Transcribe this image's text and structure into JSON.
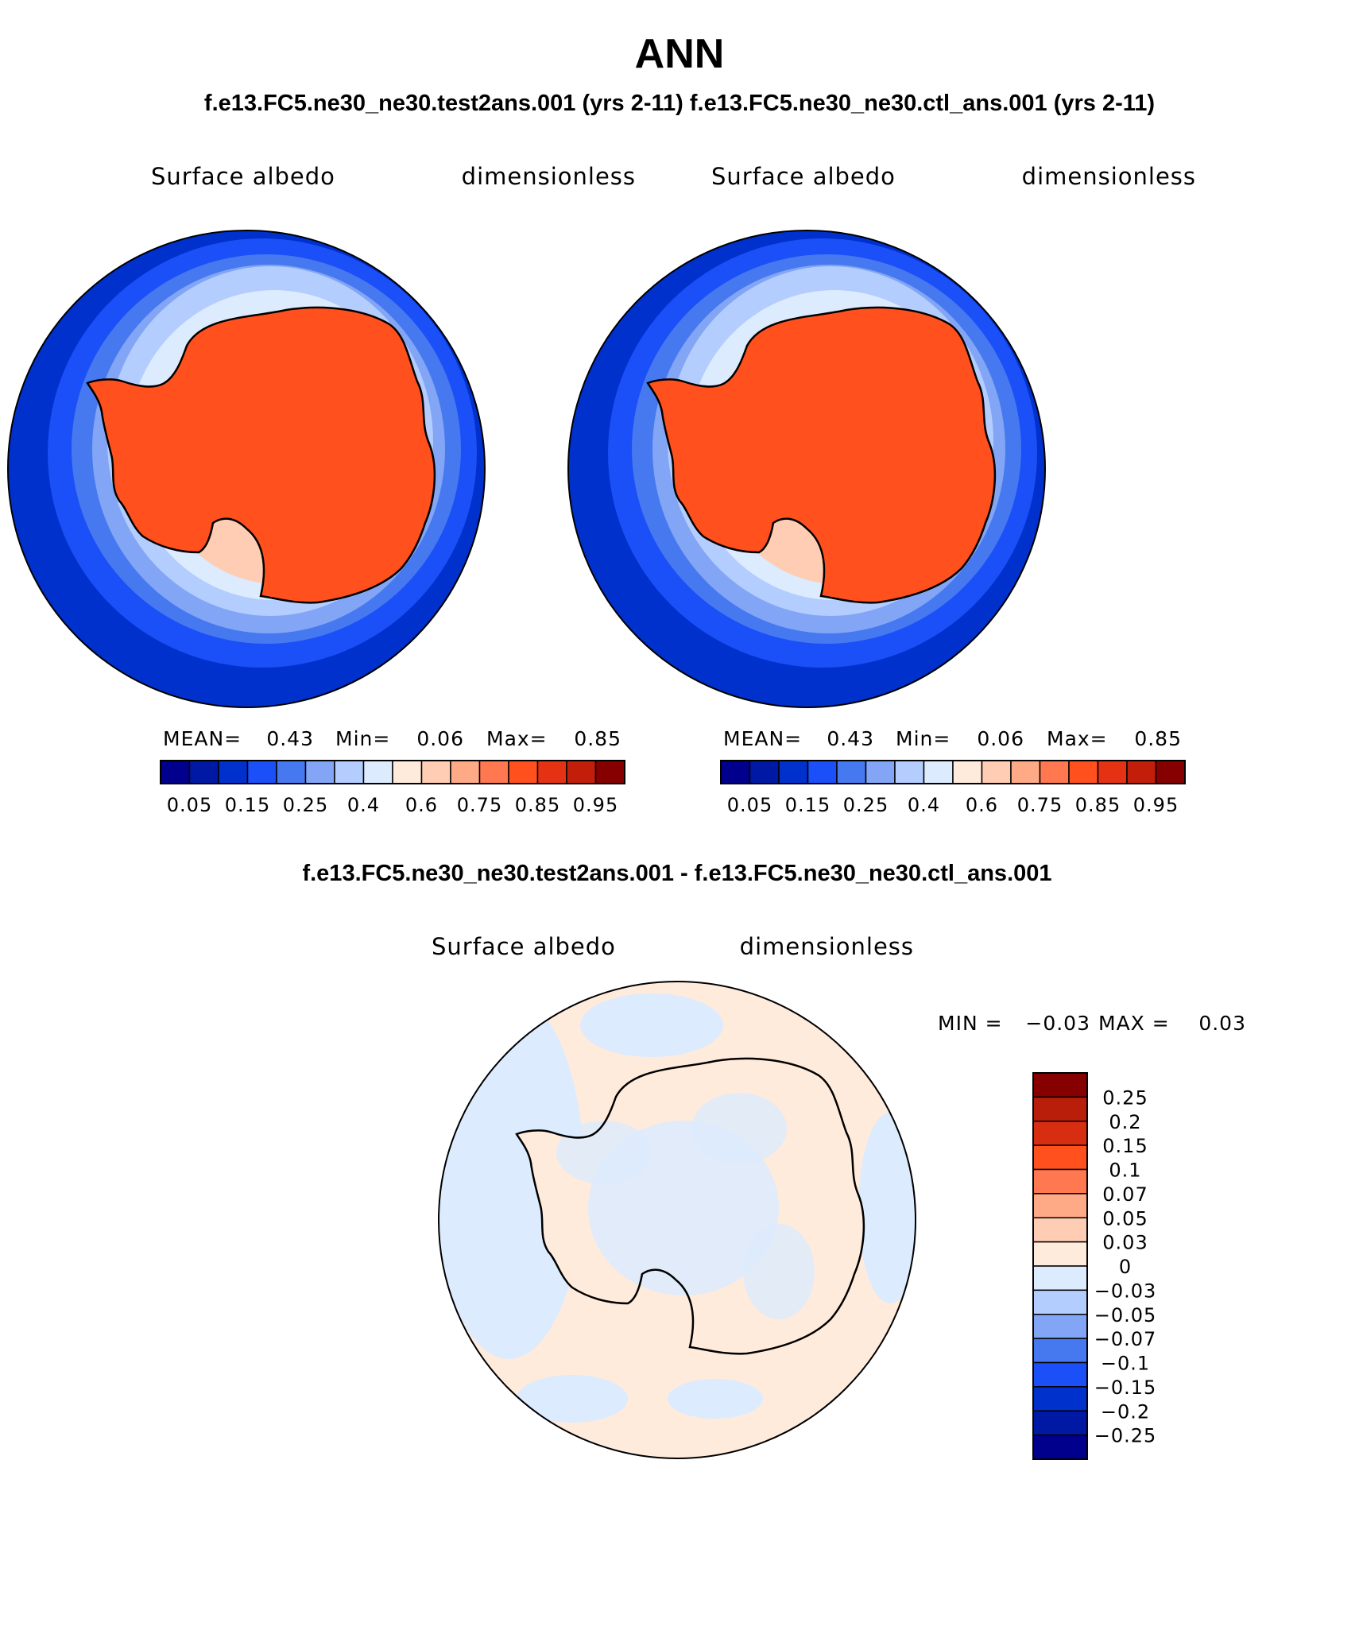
{
  "page": {
    "season": "ANN",
    "top_header": "f.e13.FC5.ne30_ne30.test2ans.001 (yrs 2-11)   f.e13.FC5.ne30_ne30.ctl_ans.001 (yrs 2-11)",
    "diff_header": "f.e13.FC5.ne30_ne30.test2ans.001 - f.e13.FC5.ne30_ne30.ctl_ans.001"
  },
  "panels": [
    {
      "variable": "Surface albedo",
      "units": "dimensionless",
      "stats": {
        "mean_label": "MEAN=",
        "mean": "0.43",
        "min_label": "Min=",
        "min": "0.06",
        "max_label": "Max=",
        "max": "0.85"
      }
    },
    {
      "variable": "Surface albedo",
      "units": "dimensionless",
      "stats": {
        "mean_label": "MEAN=",
        "mean": "0.43",
        "min_label": "Min=",
        "min": "0.06",
        "max_label": "Max=",
        "max": "0.85"
      }
    }
  ],
  "diff_panel": {
    "variable": "Surface albedo",
    "units": "dimensionless",
    "stats": {
      "min_label": "MIN =",
      "min": "−0.03",
      "max_label": "MAX =",
      "max": "0.03"
    }
  },
  "colorbar_abs": {
    "colors": [
      "#00008c",
      "#0019a5",
      "#0031cc",
      "#1b4ff7",
      "#4678f0",
      "#82a5f5",
      "#b4cdff",
      "#dcebfe",
      "#ffebdc",
      "#ffcdb4",
      "#ffaa87",
      "#ff7850",
      "#ff501e",
      "#e63214",
      "#c31e0a",
      "#870000"
    ],
    "labels": [
      "0.05",
      "0.15",
      "0.25",
      "0.4",
      "0.6",
      "0.75",
      "0.85",
      "0.95"
    ]
  },
  "colorbar_diff": {
    "colors": [
      "#870000",
      "#b91e0a",
      "#d72d10",
      "#ff501e",
      "#ff7850",
      "#ffaa87",
      "#ffcdb4",
      "#ffebdc",
      "#dcebfe",
      "#b4cdff",
      "#82a5f5",
      "#4678f0",
      "#1b4ff7",
      "#0031cc",
      "#0019a5",
      "#00008c"
    ],
    "labels": [
      "0.25",
      "0.2",
      "0.15",
      "0.1",
      "0.07",
      "0.05",
      "0.03",
      "0",
      "−0.03",
      "−0.05",
      "−0.07",
      "−0.1",
      "−0.15",
      "−0.2",
      "−0.25"
    ]
  },
  "map_colors": {
    "ocean": "#0031cc",
    "sea_ice_outer": "#1b4ff7",
    "sea_ice_mid": "#4678f0",
    "sea_ice_light": "#82a5f5",
    "sea_ice_pale": "#b4cdff",
    "ice_edge": "#dcebfe",
    "shelf": "#ffcdb4",
    "shelf_warm": "#ffaa87",
    "shelf_bright": "#ff7850",
    "continent": "#ff501e",
    "diff_pos": "#ffebdc",
    "diff_neg": "#dcebfe",
    "coast": "#000000"
  }
}
